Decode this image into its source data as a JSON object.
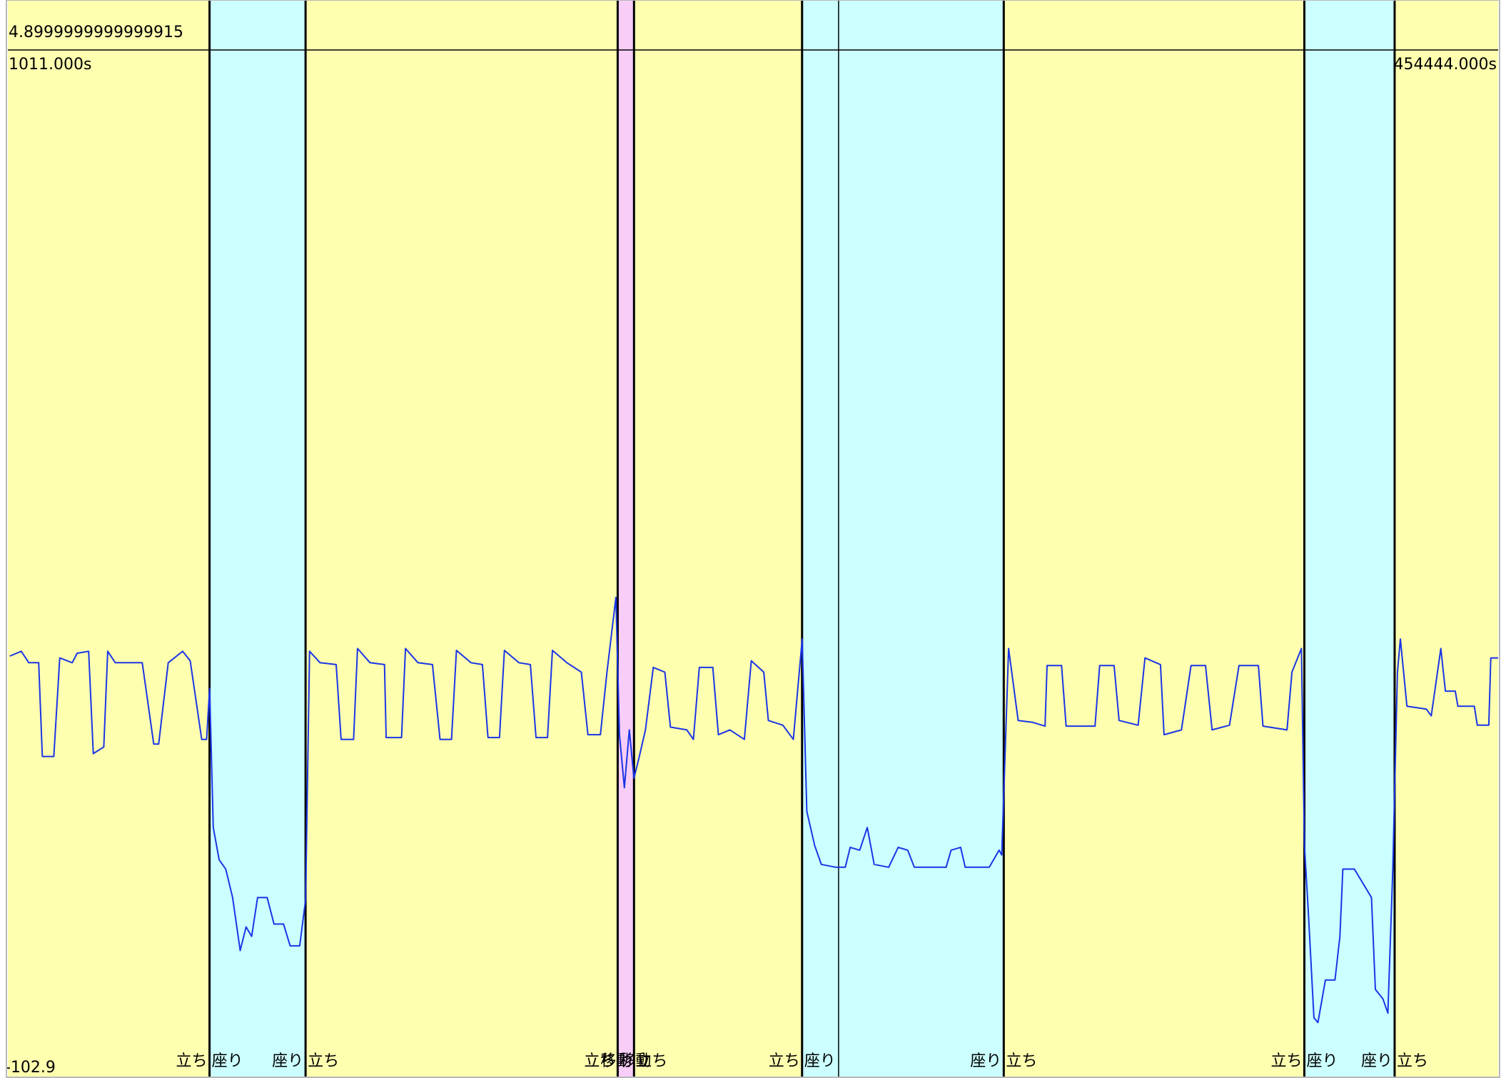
{
  "chart_data": {
    "type": "line",
    "xlim": [
      1011,
      454444
    ],
    "ylim": [
      -102.9,
      4.9
    ],
    "xticks": [
      {
        "value": 1011,
        "label": "1011.000s"
      },
      {
        "value": 454444,
        "label": "454444.000s"
      }
    ],
    "yticks": [
      {
        "value": 4.9,
        "label": "4.8999999999999915"
      },
      -102.9
    ],
    "segments": [
      {
        "label": "立ち",
        "start": 1011,
        "end": 62373,
        "color": "#ffffb0"
      },
      {
        "label": "座り",
        "start": 62373,
        "end": 91593,
        "color": "#ccffff"
      },
      {
        "label": "立ち",
        "start": 91593,
        "end": 186558,
        "color": "#ffffb0"
      },
      {
        "label": "移動",
        "start": 186558,
        "end": 191525,
        "color": "#f8cdf8"
      },
      {
        "label": "立ち",
        "start": 191525,
        "end": 242660,
        "color": "#ffffb0"
      },
      {
        "label": "座り",
        "start": 242660,
        "end": 304022,
        "color": "#ccffff"
      },
      {
        "label": "立ち",
        "start": 304022,
        "end": 395481,
        "color": "#ffffb0"
      },
      {
        "label": "座り",
        "start": 395481,
        "end": 422948,
        "color": "#ccffff"
      },
      {
        "label": "立ち",
        "start": 422948,
        "end": 454444,
        "color": "#ffffb0"
      }
    ],
    "dividers": [
      253764
    ],
    "series": [
      {
        "color": "#1a35e6",
        "x": [
          1600,
          5100,
          7400,
          10400,
          11500,
          15000,
          16800,
          20600,
          22100,
          25600,
          27000,
          30200,
          31400,
          33700,
          41300,
          41900,
          45400,
          46900,
          49800,
          54200,
          56500,
          60000,
          61500,
          62400,
          63500,
          65300,
          67300,
          69400,
          71700,
          73500,
          75200,
          77000,
          79900,
          82000,
          84900,
          86900,
          89800,
          91600,
          92800,
          96000,
          100900,
          102400,
          106200,
          107400,
          111200,
          115600,
          116100,
          120800,
          122000,
          125800,
          130200,
          132500,
          136000,
          137500,
          141900,
          145400,
          147100,
          150600,
          152100,
          156500,
          160000,
          161700,
          165200,
          166700,
          171100,
          175500,
          177500,
          181300,
          183300,
          186000,
          187100,
          188600,
          190100,
          191500,
          193000,
          195000,
          197400,
          200900,
          202600,
          207600,
          209600,
          211400,
          215500,
          217200,
          220700,
          225100,
          227200,
          231000,
          232400,
          236800,
          240000,
          242700,
          244100,
          246500,
          248500,
          252900,
          255800,
          257300,
          260200,
          262500,
          264600,
          269000,
          271900,
          274800,
          276800,
          286500,
          288000,
          290900,
          292300,
          299600,
          302600,
          303400,
          305500,
          308400,
          312800,
          316600,
          317200,
          321600,
          323000,
          331800,
          333200,
          337600,
          339100,
          344900,
          347000,
          351700,
          352800,
          358100,
          361000,
          365400,
          367400,
          372700,
          375600,
          381500,
          382900,
          390200,
          391700,
          394600,
          395500,
          396700,
          398400,
          399600,
          401900,
          404800,
          406300,
          407200,
          410700,
          415900,
          417100,
          419400,
          420900,
          422400,
          423800,
          424700,
          426700,
          432600,
          434100,
          437000,
          438400,
          441400,
          442200,
          447200,
          448100,
          451600,
          452200,
          454444
        ],
        "values": [
          -59.1,
          -58.6,
          -59.8,
          -59.8,
          -69.7,
          -69.7,
          -59.3,
          -59.8,
          -58.8,
          -58.6,
          -69.4,
          -68.7,
          -58.6,
          -59.8,
          -59.8,
          -59.8,
          -68.4,
          -68.4,
          -59.8,
          -58.6,
          -59.6,
          -67.9,
          -67.9,
          -62.5,
          -77.2,
          -80.6,
          -81.6,
          -84.6,
          -90.2,
          -87.7,
          -88.7,
          -84.6,
          -84.6,
          -87.4,
          -87.4,
          -89.7,
          -89.7,
          -84.8,
          -58.6,
          -59.8,
          -60.0,
          -67.9,
          -67.9,
          -58.3,
          -59.8,
          -60.0,
          -67.7,
          -67.7,
          -58.3,
          -59.8,
          -60.0,
          -67.9,
          -67.9,
          -58.5,
          -59.8,
          -60.0,
          -67.7,
          -67.7,
          -58.5,
          -59.8,
          -60.0,
          -67.7,
          -67.7,
          -58.5,
          -59.8,
          -60.8,
          -67.4,
          -67.4,
          -60.8,
          -52.9,
          -67.4,
          -73.0,
          -66.9,
          -72.0,
          -69.9,
          -66.9,
          -60.3,
          -60.8,
          -66.6,
          -66.9,
          -67.9,
          -60.3,
          -60.3,
          -67.4,
          -66.9,
          -67.9,
          -59.6,
          -60.8,
          -65.9,
          -66.4,
          -67.9,
          -57.3,
          -75.5,
          -79.1,
          -81.1,
          -81.4,
          -81.4,
          -79.3,
          -79.6,
          -77.2,
          -81.1,
          -81.4,
          -79.3,
          -79.6,
          -81.4,
          -81.4,
          -79.6,
          -79.3,
          -81.4,
          -81.4,
          -79.6,
          -80.1,
          -58.3,
          -65.9,
          -66.1,
          -66.5,
          -60.1,
          -60.1,
          -66.5,
          -66.5,
          -60.1,
          -60.1,
          -65.9,
          -66.4,
          -59.3,
          -60.0,
          -67.4,
          -66.9,
          -60.1,
          -60.1,
          -66.9,
          -66.4,
          -60.1,
          -60.1,
          -66.5,
          -66.9,
          -60.8,
          -58.3,
          -79.1,
          -86.2,
          -97.3,
          -97.8,
          -93.3,
          -93.3,
          -88.7,
          -81.6,
          -81.6,
          -84.6,
          -94.3,
          -95.3,
          -96.8,
          -81.6,
          -60.8,
          -57.3,
          -64.4,
          -64.7,
          -65.4,
          -58.3,
          -62.8,
          -62.8,
          -64.4,
          -64.4,
          -66.4,
          -66.4,
          -59.3,
          -59.3
        ]
      }
    ]
  }
}
